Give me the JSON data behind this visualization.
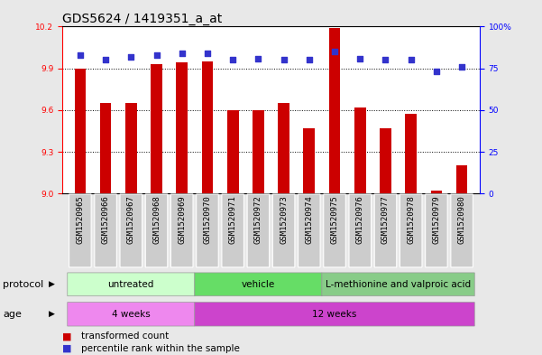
{
  "title": "GDS5624 / 1419351_a_at",
  "samples": [
    "GSM1520965",
    "GSM1520966",
    "GSM1520967",
    "GSM1520968",
    "GSM1520969",
    "GSM1520970",
    "GSM1520971",
    "GSM1520972",
    "GSM1520973",
    "GSM1520974",
    "GSM1520975",
    "GSM1520976",
    "GSM1520977",
    "GSM1520978",
    "GSM1520979",
    "GSM1520980"
  ],
  "transformed_count": [
    9.9,
    9.65,
    9.65,
    9.93,
    9.94,
    9.95,
    9.6,
    9.6,
    9.65,
    9.47,
    10.19,
    9.62,
    9.47,
    9.57,
    9.02,
    9.2
  ],
  "percentile_rank": [
    83,
    80,
    82,
    83,
    84,
    84,
    80,
    81,
    80,
    80,
    85,
    81,
    80,
    80,
    73,
    76
  ],
  "ylim_left": [
    9.0,
    10.2
  ],
  "ylim_right": [
    0,
    100
  ],
  "yticks_left": [
    9.0,
    9.3,
    9.6,
    9.9,
    10.2
  ],
  "yticks_right": [
    0,
    25,
    50,
    75,
    100
  ],
  "ytick_labels_right": [
    "0",
    "25",
    "50",
    "75",
    "100%"
  ],
  "bar_color": "#cc0000",
  "dot_color": "#3333cc",
  "protocol_groups": [
    {
      "label": "untreated",
      "start": 0,
      "end": 4,
      "color": "#ccffcc"
    },
    {
      "label": "vehicle",
      "start": 5,
      "end": 9,
      "color": "#66dd66"
    },
    {
      "label": "L-methionine and valproic acid",
      "start": 10,
      "end": 15,
      "color": "#88cc88"
    }
  ],
  "age_groups": [
    {
      "label": "4 weeks",
      "start": 0,
      "end": 4,
      "color": "#ee88ee"
    },
    {
      "label": "12 weeks",
      "start": 5,
      "end": 15,
      "color": "#cc44cc"
    }
  ],
  "protocol_label": "protocol",
  "age_label": "age",
  "legend_bar_label": "transformed count",
  "legend_dot_label": "percentile rank within the sample",
  "bg_color": "#e8e8e8",
  "plot_bg_color": "#ffffff",
  "xlabel_bg": "#cccccc",
  "title_fontsize": 10,
  "tick_fontsize": 6.5,
  "label_fontsize": 8,
  "annot_fontsize": 7.5,
  "bar_width": 0.45
}
